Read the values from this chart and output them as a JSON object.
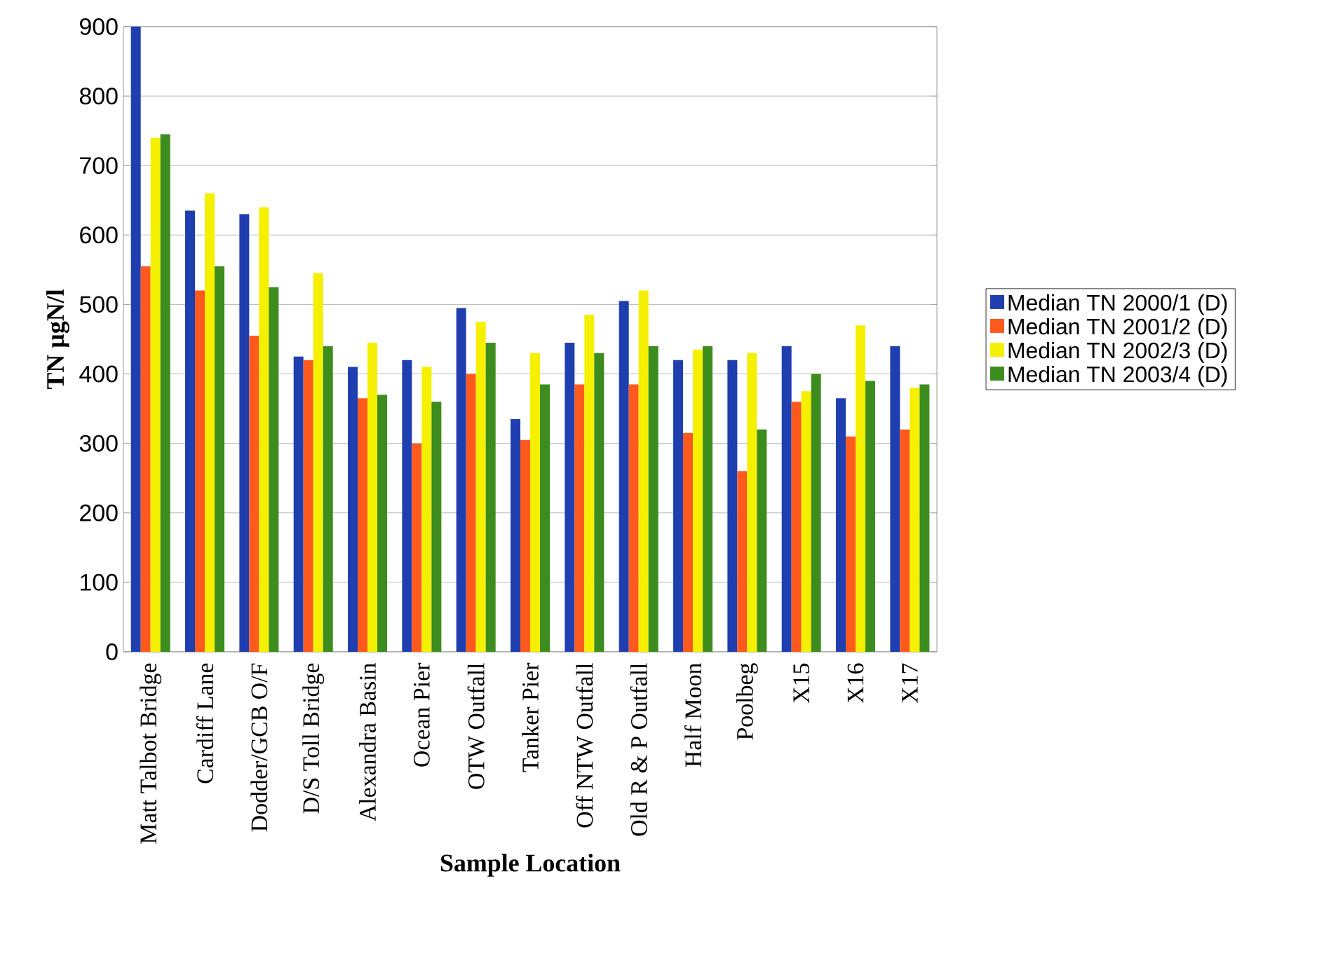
{
  "chart_data": {
    "type": "bar",
    "xlabel": "Sample Location",
    "ylabel": "TN µgN/l",
    "categories": [
      "Matt Talbot Bridge",
      "Cardiff Lane",
      "Dodder/GCB O/F",
      "D/S Toll Bridge",
      "Alexandra Basin",
      "Ocean Pier",
      "OTW Outfall",
      "Tanker Pier",
      "Off NTW Outfall",
      "Old R & P Outfall",
      "Half Moon",
      "Poolbeg",
      "X15",
      "X16",
      "X17"
    ],
    "series": [
      {
        "name": "Median TN 2000/1 (D)",
        "color": "#1f3fb0",
        "values": [
          900,
          635,
          630,
          425,
          410,
          420,
          495,
          335,
          445,
          505,
          420,
          420,
          440,
          365,
          440
        ]
      },
      {
        "name": "Median TN 2001/2 (D)",
        "color": "#ff5a1e",
        "values": [
          555,
          520,
          455,
          420,
          365,
          300,
          400,
          305,
          385,
          385,
          315,
          260,
          360,
          310,
          320
        ]
      },
      {
        "name": "Median TN 2002/3 (D)",
        "color": "#f5f000",
        "values": [
          740,
          660,
          640,
          545,
          445,
          410,
          475,
          430,
          485,
          520,
          435,
          430,
          375,
          470,
          380
        ]
      },
      {
        "name": "Median TN 2003/4 (D)",
        "color": "#3c8c1e",
        "values": [
          745,
          555,
          525,
          440,
          370,
          360,
          445,
          385,
          430,
          440,
          440,
          320,
          400,
          390,
          385
        ]
      }
    ],
    "ylim": [
      0,
      900
    ],
    "yticks": [
      0,
      100,
      200,
      300,
      400,
      500,
      600,
      700,
      800,
      900
    ],
    "grid": "y",
    "legend": "right"
  }
}
